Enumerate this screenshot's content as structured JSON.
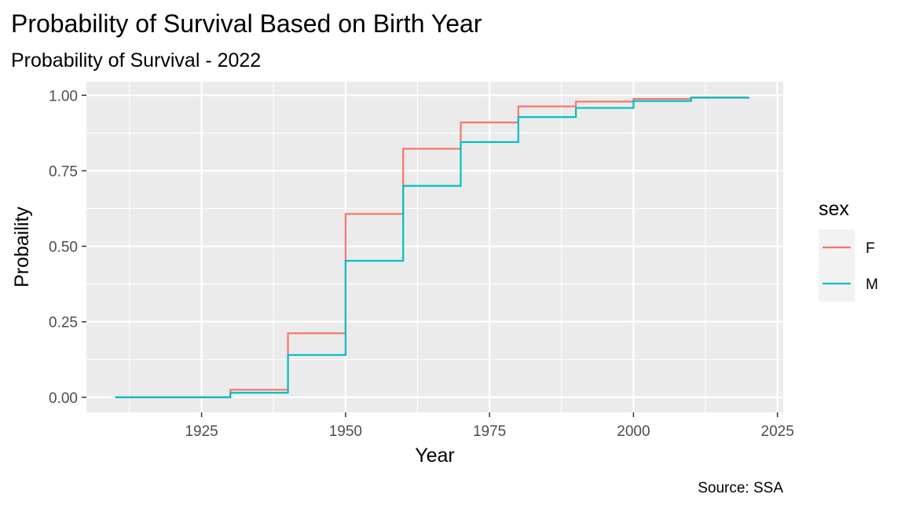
{
  "chart_data": {
    "type": "line",
    "step": true,
    "title": "Probability of Survival Based on Birth Year",
    "subtitle": "Probability of Survival - 2022",
    "xlabel": "Year",
    "ylabel": "Probaility",
    "caption": "Source: SSA",
    "xlim": [
      1905,
      2026
    ],
    "ylim": [
      -0.05,
      1.045
    ],
    "x_ticks": [
      1925,
      1950,
      1975,
      2000,
      2025
    ],
    "y_ticks": [
      0,
      0.25,
      0.5,
      0.75,
      1
    ],
    "y_tick_labels": [
      "0.00",
      "0.25",
      "0.50",
      "0.75",
      "1.00"
    ],
    "grid": true,
    "legend": {
      "title": "sex",
      "position": "right"
    },
    "x": [
      1910,
      1920,
      1930,
      1940,
      1950,
      1960,
      1970,
      1980,
      1990,
      2000,
      2010,
      2020
    ],
    "series": [
      {
        "name": "F",
        "color": "#F8766D",
        "values": [
          0.0,
          0.0,
          0.025,
          0.212,
          0.607,
          0.823,
          0.91,
          0.963,
          0.979,
          0.988,
          0.993,
          0.993
        ]
      },
      {
        "name": "M",
        "color": "#00BFC4",
        "values": [
          0.0,
          0.0,
          0.015,
          0.14,
          0.452,
          0.7,
          0.845,
          0.928,
          0.958,
          0.981,
          0.992,
          0.993
        ]
      }
    ]
  }
}
